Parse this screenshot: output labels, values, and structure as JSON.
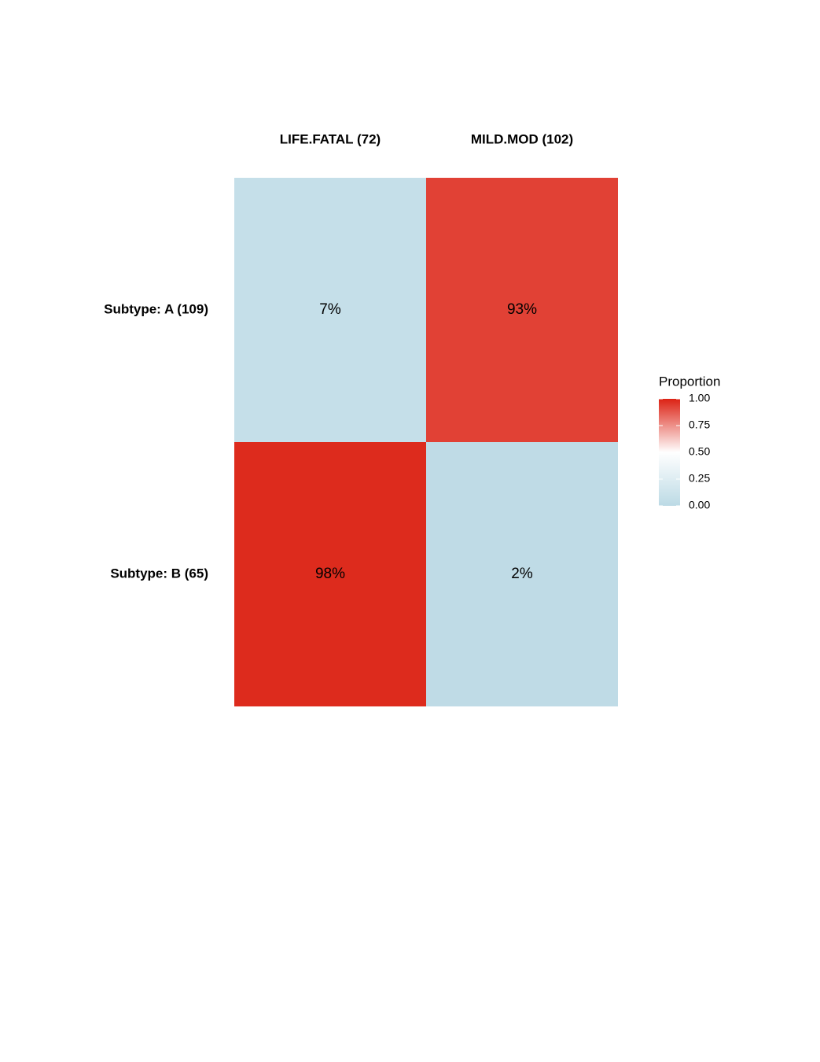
{
  "chart_data": {
    "type": "heatmap",
    "x_categories": [
      "LIFE.FATAL (72)",
      "MILD.MOD (102)"
    ],
    "y_categories": [
      "Subtype: A (109)",
      "Subtype: B (65)"
    ],
    "values": [
      [
        0.07,
        0.93
      ],
      [
        0.98,
        0.02
      ]
    ],
    "value_labels": [
      [
        "7%",
        "93%"
      ],
      [
        "98%",
        "2%"
      ]
    ],
    "legend_title": "Proportion",
    "clim": [
      0,
      1
    ],
    "cticks": [
      {
        "value": 0,
        "label": "0.00"
      },
      {
        "value": 0.25,
        "label": "0.25"
      },
      {
        "value": 0.5,
        "label": "0.50"
      },
      {
        "value": 0.75,
        "label": "0.75"
      },
      {
        "value": 1,
        "label": "1.00"
      }
    ],
    "colors": [
      "#bcdae5",
      "#ffffff",
      "#dc2214"
    ],
    "legend_position": "right"
  }
}
